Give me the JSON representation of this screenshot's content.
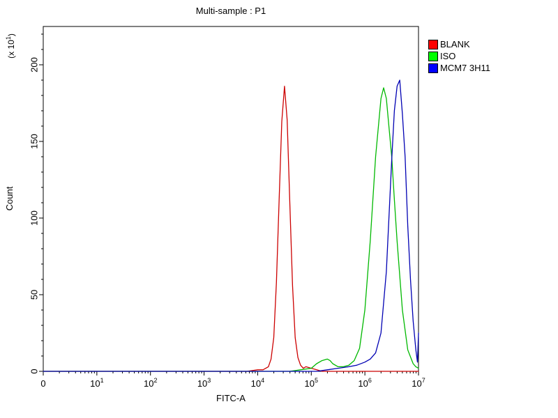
{
  "chart_data": {
    "type": "line",
    "subtype": "flow-cytometry-histogram-overlay",
    "title": "Multi-sample : P1",
    "xlabel": "FITC-A",
    "ylabel": "Count",
    "y_multiplier": {
      "pre": "(x 10",
      "sup": "1",
      "post": ")"
    },
    "x_units": "log10(FITC-A)",
    "x_axis": {
      "scale": "log-decades",
      "tick_labels": [
        "0",
        "10^1",
        "10^2",
        "10^3",
        "10^4",
        "10^5",
        "10^6",
        "10^7"
      ],
      "range_log10": [
        0,
        7
      ],
      "minor_ticks": "log positions 2-9 per decade"
    },
    "y_axis": {
      "ticks": [
        0,
        50,
        100,
        150,
        200
      ],
      "ylim": [
        0,
        225
      ],
      "minor_step": 10,
      "tick_label_rotation_deg": -90
    },
    "legend": {
      "position": "top-right-outside",
      "items": [
        {
          "label": "BLANK",
          "swatch": "#ff0000"
        },
        {
          "label": "ISO",
          "swatch": "#00ff00"
        },
        {
          "label": "MCM7 3H11",
          "swatch": "#0000ff"
        }
      ]
    },
    "grid": false,
    "plot_bg": "#ffffff",
    "border_color": "#000000",
    "series": [
      {
        "name": "BLANK",
        "color": "#cc0000",
        "points": [
          [
            0,
            0
          ],
          [
            3.8,
            0
          ],
          [
            4.0,
            1
          ],
          [
            4.1,
            1
          ],
          [
            4.2,
            3
          ],
          [
            4.25,
            8
          ],
          [
            4.3,
            22
          ],
          [
            4.35,
            58
          ],
          [
            4.4,
            112
          ],
          [
            4.45,
            163
          ],
          [
            4.5,
            186
          ],
          [
            4.55,
            164
          ],
          [
            4.6,
            110
          ],
          [
            4.65,
            56
          ],
          [
            4.7,
            22
          ],
          [
            4.75,
            9
          ],
          [
            4.8,
            4
          ],
          [
            4.85,
            2
          ],
          [
            4.9,
            3
          ],
          [
            5.0,
            2
          ],
          [
            5.1,
            1
          ],
          [
            5.2,
            0
          ],
          [
            7.0,
            0
          ]
        ]
      },
      {
        "name": "ISO",
        "color": "#00b800",
        "points": [
          [
            0,
            0
          ],
          [
            4.6,
            0
          ],
          [
            4.8,
            1
          ],
          [
            5.0,
            2
          ],
          [
            5.1,
            5
          ],
          [
            5.2,
            7
          ],
          [
            5.3,
            8
          ],
          [
            5.35,
            7
          ],
          [
            5.4,
            5
          ],
          [
            5.5,
            3
          ],
          [
            5.6,
            3
          ],
          [
            5.7,
            4
          ],
          [
            5.8,
            7
          ],
          [
            5.9,
            15
          ],
          [
            6.0,
            40
          ],
          [
            6.1,
            85
          ],
          [
            6.2,
            140
          ],
          [
            6.3,
            178
          ],
          [
            6.35,
            185
          ],
          [
            6.4,
            178
          ],
          [
            6.5,
            140
          ],
          [
            6.55,
            112
          ],
          [
            6.6,
            85
          ],
          [
            6.7,
            40
          ],
          [
            6.8,
            14
          ],
          [
            6.9,
            5
          ],
          [
            6.95,
            3
          ],
          [
            7.0,
            2
          ]
        ]
      },
      {
        "name": "MCM7 3H11",
        "color": "#0000b3",
        "points": [
          [
            0,
            0
          ],
          [
            5.1,
            0
          ],
          [
            5.3,
            1
          ],
          [
            5.5,
            2
          ],
          [
            5.7,
            3
          ],
          [
            5.85,
            4
          ],
          [
            6.0,
            6
          ],
          [
            6.1,
            8
          ],
          [
            6.2,
            12
          ],
          [
            6.3,
            25
          ],
          [
            6.4,
            65
          ],
          [
            6.5,
            138
          ],
          [
            6.55,
            170
          ],
          [
            6.6,
            186
          ],
          [
            6.65,
            190
          ],
          [
            6.7,
            168
          ],
          [
            6.75,
            140
          ],
          [
            6.8,
            95
          ],
          [
            6.85,
            60
          ],
          [
            6.9,
            33
          ],
          [
            6.95,
            14
          ],
          [
            6.98,
            6
          ],
          [
            7.0,
            25
          ]
        ]
      }
    ]
  }
}
